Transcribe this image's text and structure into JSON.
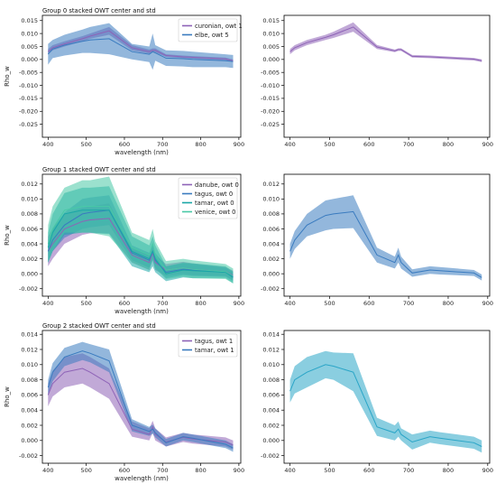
{
  "colors": {
    "purple": "#8e63b7",
    "blue": "#3a7bbf",
    "teal": "#1aa7a7",
    "green": "#49c9a6",
    "cyan": "#2aa5c7"
  },
  "chart_data": [
    {
      "id": "g0-stacked",
      "type": "area",
      "title": "Group 0 stacked OWT center and std",
      "xlabel": "wavelength (nm)",
      "ylabel": "Rho_w",
      "xlim": [
        385,
        905
      ],
      "ylim": [
        -0.03,
        0.017
      ],
      "xticks": [
        400,
        500,
        600,
        700,
        800,
        900
      ],
      "yticks": [
        -0.025,
        -0.02,
        -0.015,
        -0.01,
        -0.005,
        0.0,
        0.005,
        0.01,
        0.015
      ],
      "ytick_labels": [
        "-0.025",
        "-0.020",
        "-0.015",
        "-0.010",
        "-0.005",
        "0.000",
        "0.005",
        "0.010",
        "0.015"
      ],
      "legend": "top-right",
      "x": [
        400,
        412,
        443,
        490,
        510,
        560,
        620,
        665,
        674,
        681,
        709,
        754,
        779,
        865,
        885
      ],
      "series": [
        {
          "name": "curonian, owt 1",
          "color": "purple",
          "mean": [
            0.003,
            0.0045,
            0.006,
            0.008,
            0.009,
            0.011,
            0.0045,
            0.003,
            0.0035,
            0.0035,
            0.0015,
            0.001,
            0.0008,
            0.0002,
            -0.0005
          ],
          "std": [
            0.001,
            0.001,
            0.001,
            0.001,
            0.001,
            0.0015,
            0.001,
            0.0008,
            0.0008,
            0.0008,
            0.0005,
            0.0005,
            0.0005,
            0.0005,
            0.0005
          ]
        },
        {
          "name": "elbe, owt 5",
          "color": "blue",
          "mean": [
            0.002,
            0.004,
            0.0055,
            0.007,
            0.0075,
            0.008,
            0.003,
            0.002,
            0.003,
            0.0025,
            0.0005,
            0.0003,
            0.0,
            -0.0005,
            -0.0008
          ],
          "std": [
            0.004,
            0.0035,
            0.004,
            0.0045,
            0.005,
            0.006,
            0.003,
            0.003,
            0.007,
            0.003,
            0.003,
            0.003,
            0.003,
            0.0025,
            0.0025
          ]
        }
      ]
    },
    {
      "id": "g0-combined",
      "type": "area",
      "xlim": [
        385,
        905
      ],
      "ylim": [
        -0.03,
        0.017
      ],
      "xticks": [
        400,
        500,
        600,
        700,
        800,
        900
      ],
      "yticks": [
        -0.025,
        -0.02,
        -0.015,
        -0.01,
        -0.005,
        0.0,
        0.005,
        0.01,
        0.015
      ],
      "ytick_labels": [
        "-0.025",
        "-0.020",
        "-0.015",
        "-0.010",
        "-0.005",
        "0.000",
        "0.005",
        "0.010",
        "0.015"
      ],
      "x": [
        400,
        412,
        443,
        490,
        510,
        560,
        620,
        665,
        674,
        681,
        709,
        754,
        779,
        865,
        885
      ],
      "series": [
        {
          "color": "purple",
          "mean": [
            0.003,
            0.0045,
            0.0065,
            0.0085,
            0.0095,
            0.0125,
            0.0048,
            0.0033,
            0.0038,
            0.0038,
            0.0012,
            0.001,
            0.0008,
            0.0001,
            -0.0005
          ],
          "std": [
            0.001,
            0.001,
            0.001,
            0.001,
            0.0012,
            0.0018,
            0.0008,
            0.0005,
            0.0005,
            0.0005,
            0.0005,
            0.0005,
            0.0005,
            0.0005,
            0.0005
          ]
        }
      ]
    },
    {
      "id": "g1-stacked",
      "type": "area",
      "title": "Group 1 stacked OWT center and std",
      "xlabel": "wavelength (nm)",
      "ylabel": "Rho_w",
      "xlim": [
        385,
        905
      ],
      "ylim": [
        -0.003,
        0.0133
      ],
      "xticks": [
        400,
        500,
        600,
        700,
        800,
        900
      ],
      "yticks": [
        -0.002,
        0.0,
        0.002,
        0.004,
        0.006,
        0.008,
        0.01,
        0.012
      ],
      "ytick_labels": [
        "-0.002",
        "0.000",
        "0.002",
        "0.004",
        "0.006",
        "0.008",
        "0.010",
        "0.012"
      ],
      "legend": "top-right",
      "x": [
        400,
        412,
        443,
        490,
        510,
        560,
        620,
        665,
        674,
        681,
        709,
        754,
        779,
        865,
        885
      ],
      "series": [
        {
          "name": "danube, owt 0",
          "color": "purple",
          "mean": [
            0.003,
            0.004,
            0.006,
            0.007,
            0.0072,
            0.0074,
            0.0025,
            0.0015,
            0.0028,
            0.0015,
            0.0005,
            0.0008,
            0.0006,
            0.0003,
            -0.0002
          ],
          "std": [
            0.002,
            0.002,
            0.002,
            0.0018,
            0.0018,
            0.002,
            0.001,
            0.001,
            0.001,
            0.001,
            0.0008,
            0.0008,
            0.0008,
            0.0006,
            0.0006
          ]
        },
        {
          "name": "tagus, owt 0",
          "color": "blue",
          "mean": [
            0.003,
            0.0045,
            0.0065,
            0.008,
            0.0082,
            0.0085,
            0.0028,
            0.0018,
            0.003,
            0.0018,
            0.0002,
            0.0006,
            0.0005,
            0.0002,
            -0.0004
          ],
          "std": [
            0.0015,
            0.0015,
            0.0017,
            0.002,
            0.002,
            0.002,
            0.001,
            0.001,
            0.001,
            0.001,
            0.0008,
            0.0008,
            0.0008,
            0.0006,
            0.0006
          ]
        },
        {
          "name": "tamar, owt 0",
          "color": "teal",
          "mean": [
            0.0035,
            0.0055,
            0.008,
            0.0085,
            0.0085,
            0.0085,
            0.003,
            0.002,
            0.003,
            0.002,
            0.0,
            0.0005,
            0.0004,
            0.0002,
            -0.0005
          ],
          "std": [
            0.002,
            0.0025,
            0.0028,
            0.003,
            0.003,
            0.0032,
            0.002,
            0.0018,
            0.002,
            0.0018,
            0.001,
            0.001,
            0.001,
            0.0008,
            0.0008
          ]
        },
        {
          "name": "venice, owt 0",
          "color": "green",
          "mean": [
            0.004,
            0.006,
            0.0085,
            0.009,
            0.009,
            0.009,
            0.0035,
            0.0025,
            0.004,
            0.0025,
            0.0005,
            0.0008,
            0.0006,
            0.0003,
            -0.0003
          ],
          "std": [
            0.0025,
            0.003,
            0.003,
            0.0035,
            0.0035,
            0.004,
            0.002,
            0.002,
            0.002,
            0.0018,
            0.0012,
            0.0012,
            0.0012,
            0.001,
            0.001
          ]
        }
      ]
    },
    {
      "id": "g1-combined",
      "type": "area",
      "xlim": [
        385,
        905
      ],
      "ylim": [
        -0.003,
        0.0133
      ],
      "xticks": [
        400,
        500,
        600,
        700,
        800,
        900
      ],
      "yticks": [
        -0.002,
        0.0,
        0.002,
        0.004,
        0.006,
        0.008,
        0.01,
        0.012
      ],
      "ytick_labels": [
        "-0.002",
        "0.000",
        "0.002",
        "0.004",
        "0.006",
        "0.008",
        "0.010",
        "0.012"
      ],
      "x": [
        400,
        412,
        443,
        490,
        510,
        560,
        620,
        665,
        674,
        681,
        709,
        754,
        779,
        865,
        885
      ],
      "series": [
        {
          "color": "blue",
          "mean": [
            0.003,
            0.0045,
            0.0065,
            0.0078,
            0.008,
            0.0083,
            0.0025,
            0.0015,
            0.0025,
            0.0015,
            0.0001,
            0.0005,
            0.0004,
            0.0001,
            -0.0005
          ],
          "std": [
            0.001,
            0.0012,
            0.0015,
            0.002,
            0.002,
            0.0022,
            0.001,
            0.0008,
            0.001,
            0.0008,
            0.0005,
            0.0005,
            0.0005,
            0.0004,
            0.0004
          ]
        }
      ]
    },
    {
      "id": "g2-stacked",
      "type": "area",
      "title": "Group 2 stacked OWT center and std",
      "xlabel": "wavelength (nm)",
      "ylabel": "Rho_w",
      "xlim": [
        385,
        905
      ],
      "ylim": [
        -0.003,
        0.0145
      ],
      "xticks": [
        400,
        500,
        600,
        700,
        800,
        900
      ],
      "yticks": [
        -0.002,
        0.0,
        0.002,
        0.004,
        0.006,
        0.008,
        0.01,
        0.012,
        0.014
      ],
      "ytick_labels": [
        "-0.002",
        "0.000",
        "0.002",
        "0.004",
        "0.006",
        "0.008",
        "0.010",
        "0.012",
        "0.014"
      ],
      "legend": "top-right",
      "x": [
        400,
        412,
        443,
        490,
        510,
        560,
        620,
        665,
        674,
        681,
        709,
        754,
        779,
        865,
        885
      ],
      "series": [
        {
          "name": "tagus, owt 1",
          "color": "purple",
          "mean": [
            0.006,
            0.0075,
            0.009,
            0.0095,
            0.009,
            0.0075,
            0.0015,
            0.0008,
            0.0018,
            0.0008,
            -0.0002,
            0.0004,
            0.0002,
            -0.0002,
            -0.0006
          ],
          "std": [
            0.0015,
            0.0017,
            0.002,
            0.002,
            0.002,
            0.002,
            0.001,
            0.0008,
            0.0008,
            0.0008,
            0.0006,
            0.0006,
            0.0006,
            0.0006,
            0.0006
          ]
        },
        {
          "name": "tamar, owt 1",
          "color": "blue",
          "mean": [
            0.007,
            0.009,
            0.011,
            0.0118,
            0.0115,
            0.0105,
            0.002,
            0.0012,
            0.0015,
            0.001,
            -0.0003,
            0.0005,
            0.0003,
            -0.0005,
            -0.001
          ],
          "std": [
            0.001,
            0.0012,
            0.0012,
            0.0012,
            0.0012,
            0.0015,
            0.0008,
            0.0006,
            0.0006,
            0.0006,
            0.0005,
            0.0005,
            0.0005,
            0.0005,
            0.0005
          ]
        }
      ]
    },
    {
      "id": "g2-combined",
      "type": "area",
      "xlim": [
        385,
        905
      ],
      "ylim": [
        -0.003,
        0.0145
      ],
      "xticks": [
        400,
        500,
        600,
        700,
        800,
        900
      ],
      "yticks": [
        -0.002,
        0.0,
        0.002,
        0.004,
        0.006,
        0.008,
        0.01,
        0.012,
        0.014
      ],
      "ytick_labels": [
        "-0.002",
        "0.000",
        "0.002",
        "0.004",
        "0.006",
        "0.008",
        "0.010",
        "0.012",
        "0.014"
      ],
      "x": [
        400,
        412,
        443,
        490,
        510,
        560,
        620,
        665,
        674,
        681,
        709,
        754,
        779,
        865,
        885
      ],
      "series": [
        {
          "color": "cyan",
          "mean": [
            0.0065,
            0.008,
            0.009,
            0.01,
            0.0098,
            0.009,
            0.0018,
            0.001,
            0.0015,
            0.0008,
            -0.0002,
            0.0005,
            0.0003,
            -0.0003,
            -0.0008
          ],
          "std": [
            0.0015,
            0.0018,
            0.002,
            0.0018,
            0.0018,
            0.0025,
            0.0012,
            0.001,
            0.001,
            0.0008,
            0.001,
            0.0008,
            0.0008,
            0.0008,
            0.0008
          ]
        }
      ]
    }
  ]
}
